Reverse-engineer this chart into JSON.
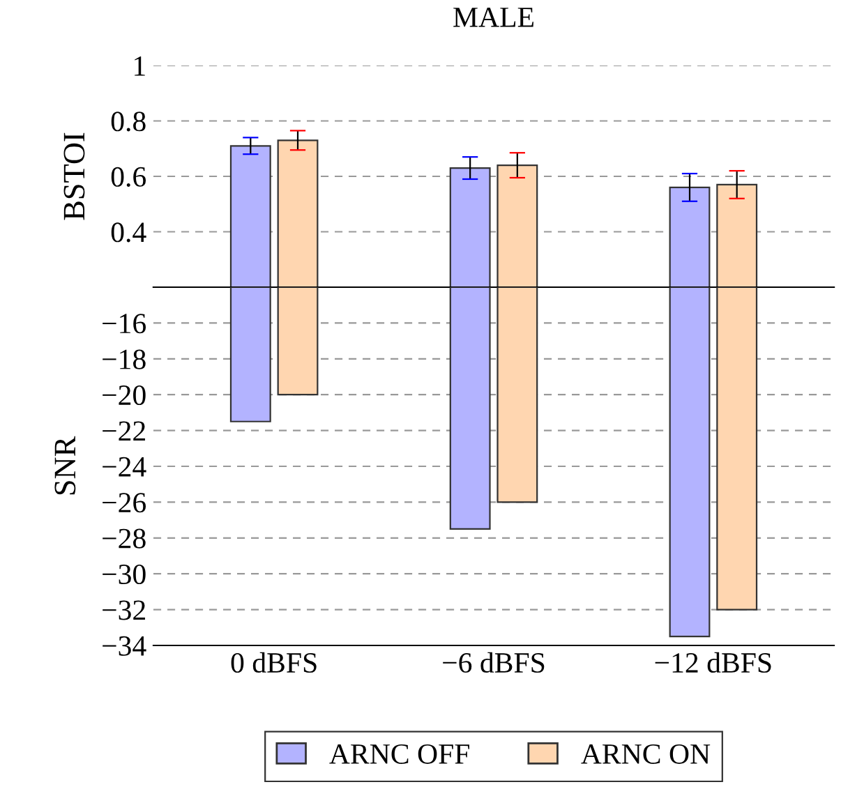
{
  "chart_data": [
    {
      "type": "bar",
      "title": "MALE",
      "ylabel": "BSTOI",
      "categories": [
        null,
        null,
        null
      ],
      "series": [
        {
          "color": "#b3b3ff",
          "values": [
            0.71,
            0.63,
            0.56
          ],
          "errors": [
            0.03,
            0.04,
            0.05
          ]
        },
        {
          "color": "#ffd6b0",
          "values": [
            0.73,
            0.64,
            0.57
          ],
          "errors": [
            0.035,
            0.045,
            0.05
          ]
        }
      ],
      "ylim": [
        0.2,
        1
      ],
      "yticks": [
        0.4,
        0.6,
        0.8,
        1
      ],
      "grid": "y",
      "tick_labels": "y"
    },
    {
      "type": "bar",
      "ylabel": "SNR",
      "categories": [
        "0 dBFS",
        "−6 dBFS",
        "−12 dBFS"
      ],
      "series": [
        {
          "name": "ARNC OFF",
          "color": "#b3b3ff",
          "values": [
            -21.5,
            -27.5,
            -33.5
          ]
        },
        {
          "name": "ARNC ON",
          "color": "#ffd6b0",
          "values": [
            -20,
            -26,
            -32
          ]
        }
      ],
      "ylim": [
        -34,
        -14
      ],
      "yticks": [
        {
          "value": -16,
          "label": "−16"
        },
        {
          "value": -18,
          "label": "−18"
        },
        {
          "value": -20,
          "label": "−20"
        },
        {
          "value": -22,
          "label": "−22"
        },
        {
          "value": -24,
          "label": "−24"
        },
        {
          "value": -26,
          "label": "−26"
        },
        {
          "value": -28,
          "label": "−28"
        },
        {
          "value": -30,
          "label": "−30"
        },
        {
          "value": -32,
          "label": "−32"
        },
        {
          "value": -34,
          "label": "−34"
        }
      ],
      "grid": "y",
      "legend": "bottom"
    }
  ]
}
